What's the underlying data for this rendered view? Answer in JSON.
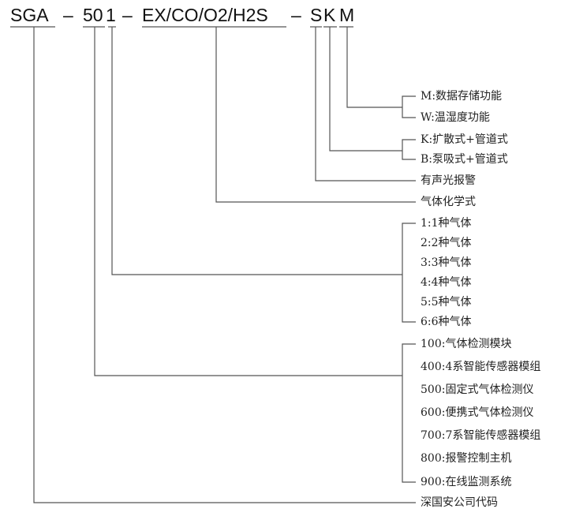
{
  "code": {
    "parts": [
      "SGA",
      "–",
      "50",
      "1",
      "–",
      "EX/CO/O2/H2S",
      "–",
      "S",
      "K",
      "M"
    ]
  },
  "labels": {
    "m": "M:数据存储功能",
    "w": "W:温湿度功能",
    "k": "K:扩散式+管道式",
    "b": "B:泵吸式+管道式",
    "alarm": "有声光报警",
    "formula": "气体化学式",
    "gas": [
      "1:1种气体",
      "2:2种气体",
      "3:3种气体",
      "4:4种气体",
      "5:5种气体",
      "6:6种气体"
    ],
    "series": [
      "100:气体检测模块",
      "400:4系智能传感器模组",
      "500:固定式气体检测仪",
      "600:便携式气体检测仪",
      "700:7系智能传感器模组",
      "800:报警控制主机",
      "900:在线监测系统"
    ],
    "company": "深国安公司代码"
  }
}
